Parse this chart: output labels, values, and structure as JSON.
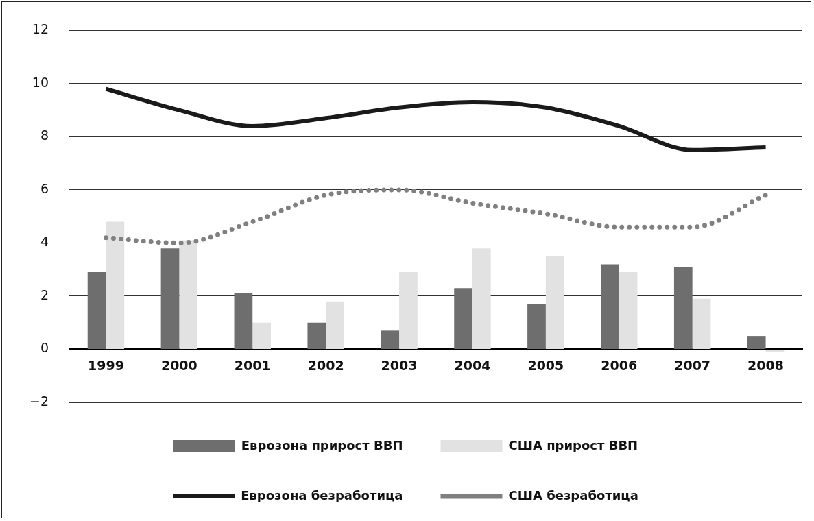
{
  "chart_data": {
    "type": "bar",
    "categories": [
      "1999",
      "2000",
      "2001",
      "2002",
      "2003",
      "2004",
      "2005",
      "2006",
      "2007",
      "2008"
    ],
    "series": [
      {
        "name": "Еврозона прирост ВВП",
        "color": "#6e6e6e",
        "values": [
          2.9,
          3.8,
          2.1,
          1.0,
          0.7,
          2.3,
          1.7,
          3.2,
          3.1,
          0.5
        ]
      },
      {
        "name": "США прирост ВВП",
        "color": "#e2e2e2",
        "values": [
          4.8,
          4.1,
          1.0,
          1.8,
          2.9,
          3.8,
          3.5,
          2.9,
          1.9,
          -0.1
        ]
      },
      {
        "name": "Еврозона безработица",
        "type": "line",
        "color": "#1a1a1a",
        "line_style": "solid",
        "values": [
          9.8,
          9.0,
          8.4,
          8.7,
          9.1,
          9.3,
          9.1,
          8.4,
          7.5,
          7.6
        ]
      },
      {
        "name": "США безработица",
        "type": "line",
        "color": "#808080",
        "line_style": "dotted",
        "values": [
          4.2,
          4.0,
          4.8,
          5.8,
          6.0,
          5.5,
          5.1,
          4.6,
          4.6,
          5.8
        ]
      }
    ],
    "ylim": [
      -2,
      12
    ],
    "yticks": [
      -2,
      0,
      2,
      4,
      6,
      8,
      10,
      12
    ],
    "grid": "y",
    "legend": "bottom",
    "marker": "none"
  }
}
